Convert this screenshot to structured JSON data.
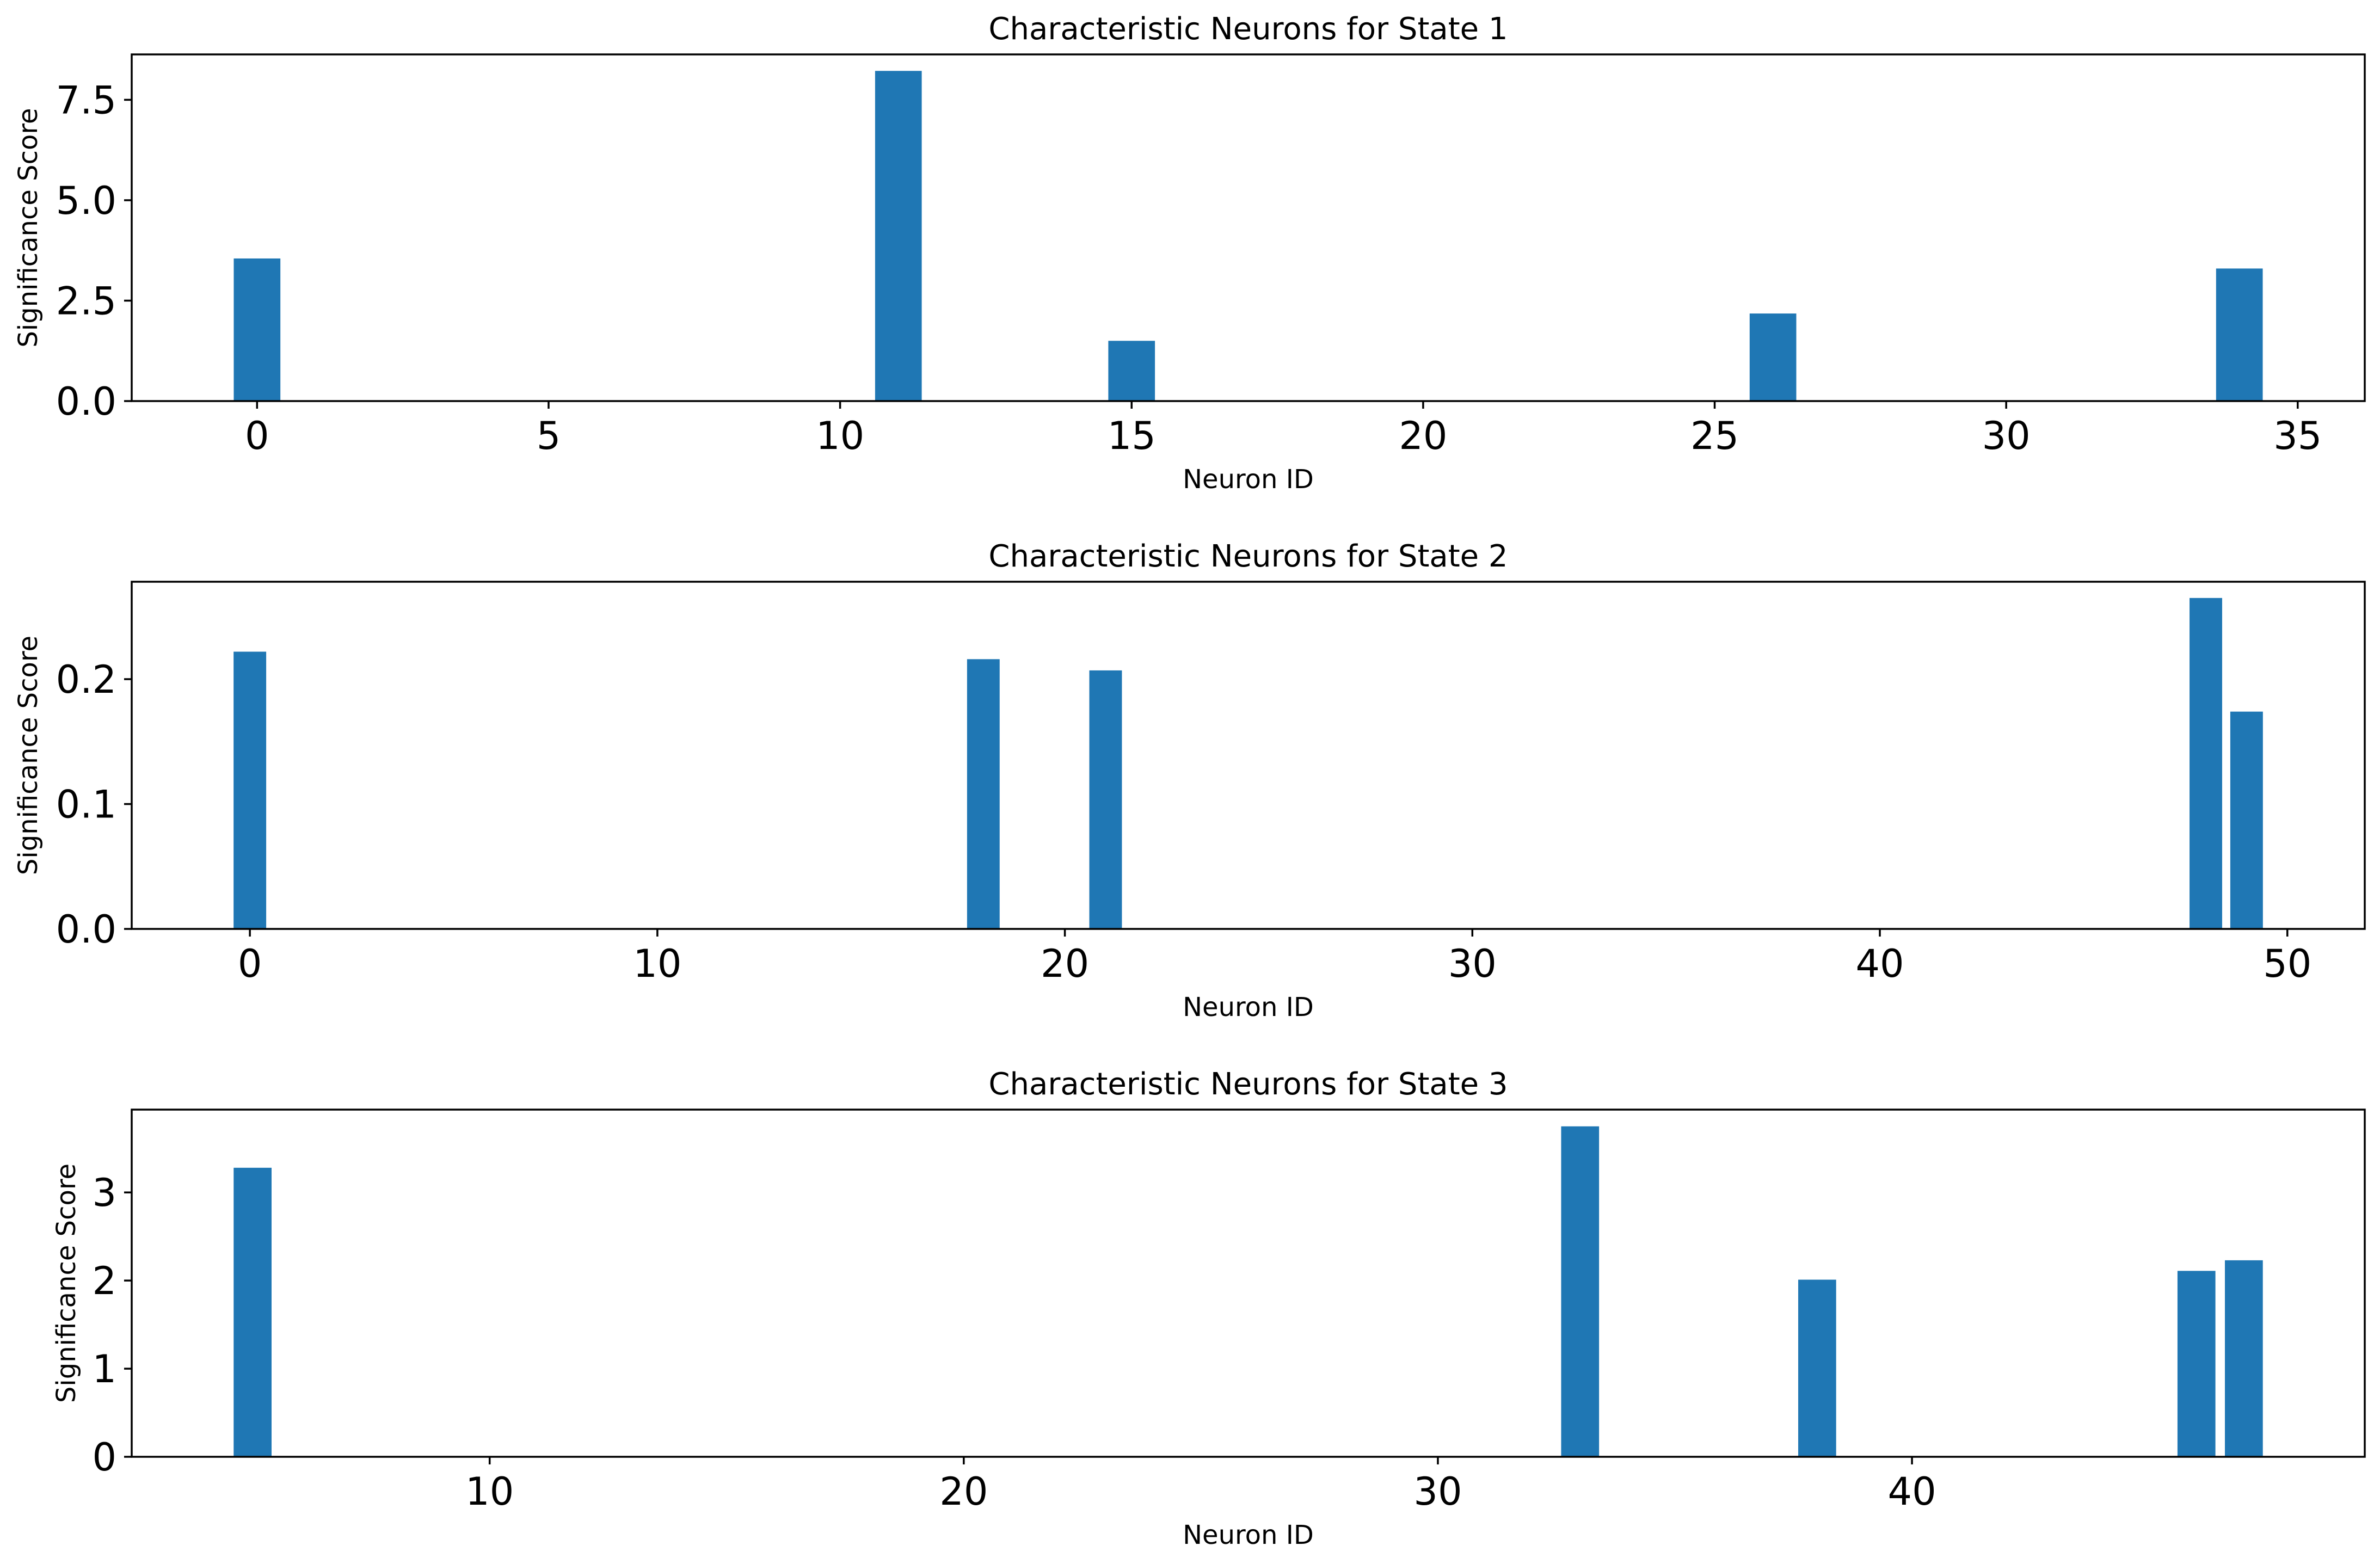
{
  "chart_data": [
    {
      "type": "bar",
      "title": "Characteristic Neurons for State 1",
      "xlabel": "Neuron ID",
      "ylabel": "Significance Score",
      "color": "#1f77b4",
      "x": [
        0,
        11,
        15,
        26,
        34
      ],
      "values": [
        3.55,
        8.22,
        1.5,
        2.18,
        3.3
      ],
      "xlim": [
        -2.15,
        36.15
      ],
      "ylim": [
        0,
        8.63
      ],
      "xticks": [
        0,
        5,
        10,
        15,
        20,
        25,
        30,
        35
      ],
      "xtick_labels": [
        "0",
        "5",
        "10",
        "15",
        "20",
        "25",
        "30",
        "35"
      ],
      "yticks": [
        0,
        2.5,
        5.0,
        7.5
      ],
      "ytick_labels": [
        "0.0",
        "2.5",
        "5.0",
        "7.5"
      ],
      "grid": false
    },
    {
      "type": "bar",
      "title": "Characteristic Neurons for State 2",
      "xlabel": "Neuron ID",
      "ylabel": "Significance Score",
      "color": "#1f77b4",
      "x": [
        0,
        18,
        21,
        48,
        49
      ],
      "values": [
        0.222,
        0.216,
        0.207,
        0.265,
        0.174
      ],
      "xlim": [
        -2.9,
        51.9
      ],
      "ylim": [
        0,
        0.278
      ],
      "xticks": [
        0,
        10,
        20,
        30,
        40,
        50
      ],
      "xtick_labels": [
        "0",
        "10",
        "20",
        "30",
        "40",
        "50"
      ],
      "yticks": [
        0,
        0.1,
        0.2
      ],
      "ytick_labels": [
        "0.0",
        "0.1",
        "0.2"
      ],
      "grid": false
    },
    {
      "type": "bar",
      "title": "Characteristic Neurons for State 3",
      "xlabel": "Neuron ID",
      "ylabel": "Significance Score",
      "color": "#1f77b4",
      "x": [
        5,
        33,
        38,
        46,
        47
      ],
      "values": [
        3.28,
        3.75,
        2.01,
        2.11,
        2.23
      ],
      "xlim": [
        2.45,
        49.55
      ],
      "ylim": [
        0,
        3.94
      ],
      "xticks": [
        10,
        20,
        30,
        40
      ],
      "xtick_labels": [
        "10",
        "20",
        "30",
        "40"
      ],
      "yticks": [
        0,
        1,
        2,
        3
      ],
      "ytick_labels": [
        "0",
        "1",
        "2",
        "3"
      ],
      "grid": false
    }
  ]
}
